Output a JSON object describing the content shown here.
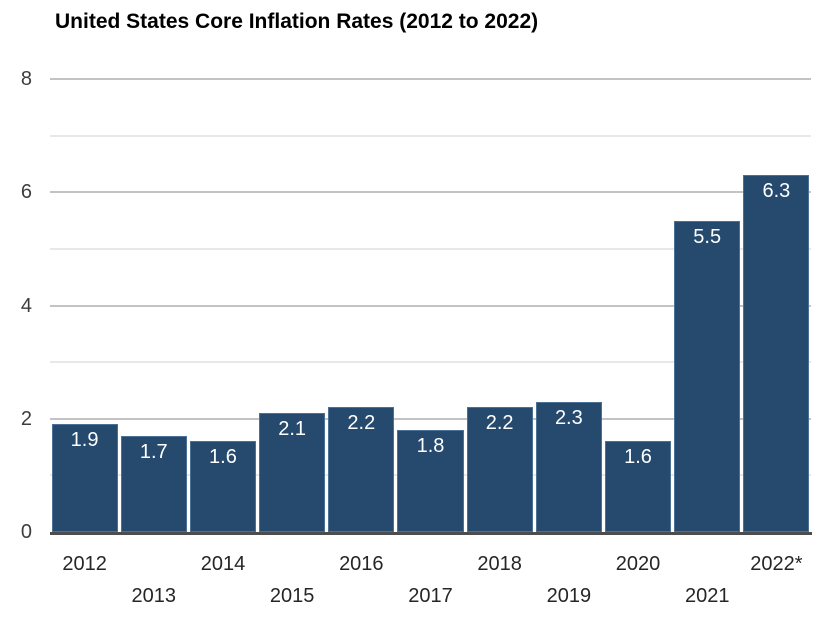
{
  "chart_data": {
    "type": "bar",
    "title": "United States Core Inflation Rates (2012 to 2022)",
    "categories": [
      "2012",
      "2013",
      "2014",
      "2015",
      "2016",
      "2017",
      "2018",
      "2019",
      "2020",
      "2021",
      "2022*"
    ],
    "values": [
      1.9,
      1.7,
      1.6,
      2.1,
      2.2,
      1.8,
      2.2,
      2.3,
      1.6,
      5.5,
      6.3
    ],
    "xlabel": "",
    "ylabel": "",
    "ylim": [
      0,
      8
    ],
    "yticks": [
      0,
      2,
      4,
      6,
      8
    ],
    "ytick_step": 2,
    "grid_step": 1,
    "grid": true,
    "legend_position": "none",
    "bar_label_decimals": 1,
    "colors": {
      "bar_fill": "#254A6D",
      "bar_edge_highlight": "#7DA2C8",
      "bar_value_label": "#FFFFFF",
      "axis_baseline": "#4D4D4D",
      "major_gridline": "#C3C3C3",
      "minor_gridline": "#E8E8E8",
      "tick_label": "#3D3D3D",
      "title_text": "#000000",
      "background": "#FFFFFF"
    },
    "x_label_layout": "staggered-two-rows"
  }
}
